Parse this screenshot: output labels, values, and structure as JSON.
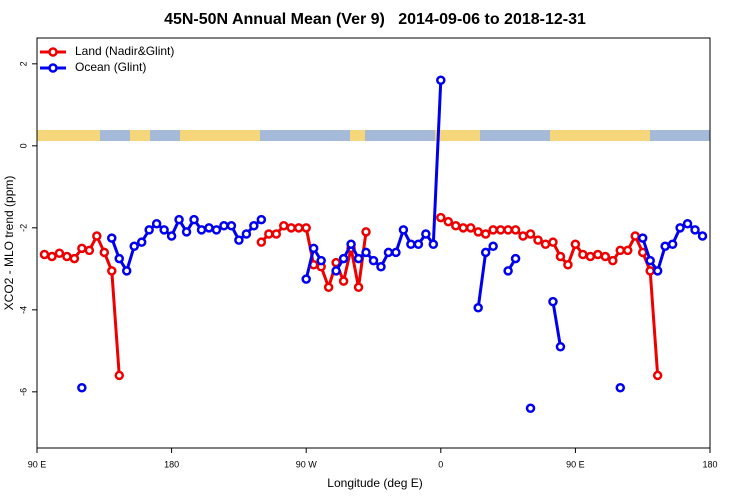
{
  "chart_data": {
    "type": "line",
    "title": "45N-50N Annual Mean (Ver 9)   2014-09-06 to 2018-12-31",
    "x_label": "Longitude (deg E)",
    "y_label": "XCO2 - MLO trend (ppm)",
    "x": [
      -265,
      -260,
      -255,
      -250,
      -245,
      -240,
      -235,
      -230,
      -225,
      -220,
      -215,
      -210,
      -205,
      -200,
      -195,
      -190,
      -185,
      -180,
      -175,
      -170,
      -165,
      -160,
      -155,
      -150,
      -145,
      -140,
      -135,
      -130,
      -125,
      -120,
      -115,
      -110,
      -105,
      -100,
      -95,
      -90,
      -85,
      -80,
      -75,
      -70,
      -65,
      -60,
      -55,
      -50,
      -45,
      -40,
      -35,
      -30,
      -25,
      -20,
      -15,
      -10,
      -5,
      0,
      5,
      10,
      15,
      20,
      25,
      30,
      35,
      40,
      45,
      50,
      55,
      60,
      65,
      70,
      75,
      80,
      85,
      90,
      95,
      100,
      105,
      110,
      115,
      120,
      125,
      130,
      135,
      140,
      145,
      150,
      155,
      160,
      165,
      170,
      175
    ],
    "series": [
      {
        "name": "Land (Nadir&Glint)",
        "color": "#ee0000",
        "values": [
          -2.65,
          -2.7,
          -2.62,
          -2.7,
          -2.75,
          -2.5,
          -2.55,
          -2.2,
          -2.6,
          -3.05,
          -5.6,
          null,
          null,
          null,
          null,
          null,
          null,
          null,
          null,
          null,
          null,
          null,
          null,
          null,
          null,
          null,
          null,
          null,
          null,
          -2.35,
          -2.15,
          -2.15,
          -1.95,
          -2.0,
          -2.0,
          -2.0,
          -2.9,
          -2.95,
          -3.45,
          -2.85,
          -3.3,
          -2.5,
          -3.45,
          -2.1,
          null,
          null,
          null,
          null,
          null,
          null,
          null,
          null,
          null,
          -1.75,
          -1.85,
          -1.95,
          -2.0,
          -2.0,
          -2.1,
          -2.15,
          -2.05,
          -2.05,
          -2.05,
          -2.05,
          -2.2,
          -2.15,
          -2.3,
          -2.4,
          -2.35,
          -2.7,
          -2.9,
          -2.4,
          -2.65,
          -2.7,
          -2.65,
          -2.7,
          -2.8,
          -2.55,
          -2.55,
          -2.2,
          -2.6,
          -3.05,
          -5.6,
          null,
          null,
          null,
          null,
          null,
          null
        ]
      },
      {
        "name": "Ocean (Glint)",
        "color": "#0000ee",
        "values": [
          null,
          null,
          null,
          null,
          null,
          -5.9,
          null,
          null,
          null,
          -2.25,
          -2.75,
          -3.05,
          -2.45,
          -2.35,
          -2.05,
          -1.9,
          -2.05,
          -2.2,
          -1.8,
          -2.1,
          -1.8,
          -2.05,
          -2.0,
          -2.05,
          -1.95,
          -1.95,
          -2.3,
          -2.15,
          -1.95,
          -1.8,
          null,
          null,
          null,
          null,
          null,
          -3.25,
          -2.5,
          -2.8,
          null,
          -3.05,
          -2.75,
          -2.4,
          -2.75,
          -2.6,
          -2.8,
          -2.95,
          -2.6,
          -2.6,
          -2.05,
          -2.4,
          -2.4,
          -2.15,
          -2.4,
          1.6,
          null,
          null,
          null,
          null,
          -3.95,
          -2.6,
          -2.45,
          null,
          -3.05,
          -2.75,
          null,
          -6.4,
          null,
          null,
          -3.8,
          -4.9,
          null,
          null,
          null,
          null,
          null,
          null,
          null,
          -5.9,
          null,
          null,
          -2.25,
          -2.8,
          -3.05,
          -2.45,
          -2.4,
          -2.0,
          -1.9,
          -2.05,
          -2.2
        ]
      }
    ],
    "xlim": [
      -270,
      180
    ],
    "xticks": [
      {
        "value": -270,
        "label": "90 E"
      },
      {
        "value": -180,
        "label": "180"
      },
      {
        "value": -90,
        "label": "90 W"
      },
      0,
      {
        "value": 90,
        "label": "90 E"
      },
      {
        "value": 180,
        "label": "180"
      }
    ],
    "ylim": [
      -7.37,
      2.63
    ],
    "yticks": [
      -6,
      -4,
      -2,
      0,
      2
    ],
    "legend": "top-left",
    "grid": false
  }
}
